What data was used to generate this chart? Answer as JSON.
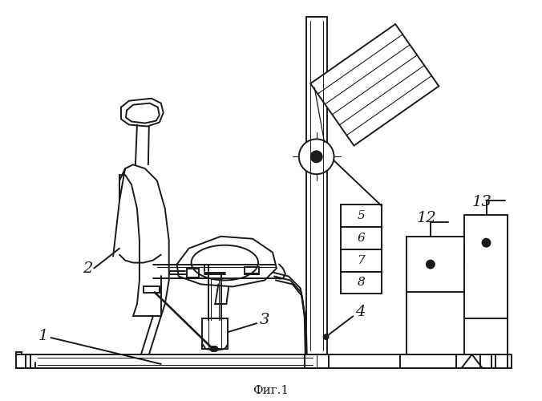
{
  "title": "Фиг.1",
  "bg_color": "#ffffff",
  "line_color": "#1a1a1a",
  "line_width": 1.4
}
